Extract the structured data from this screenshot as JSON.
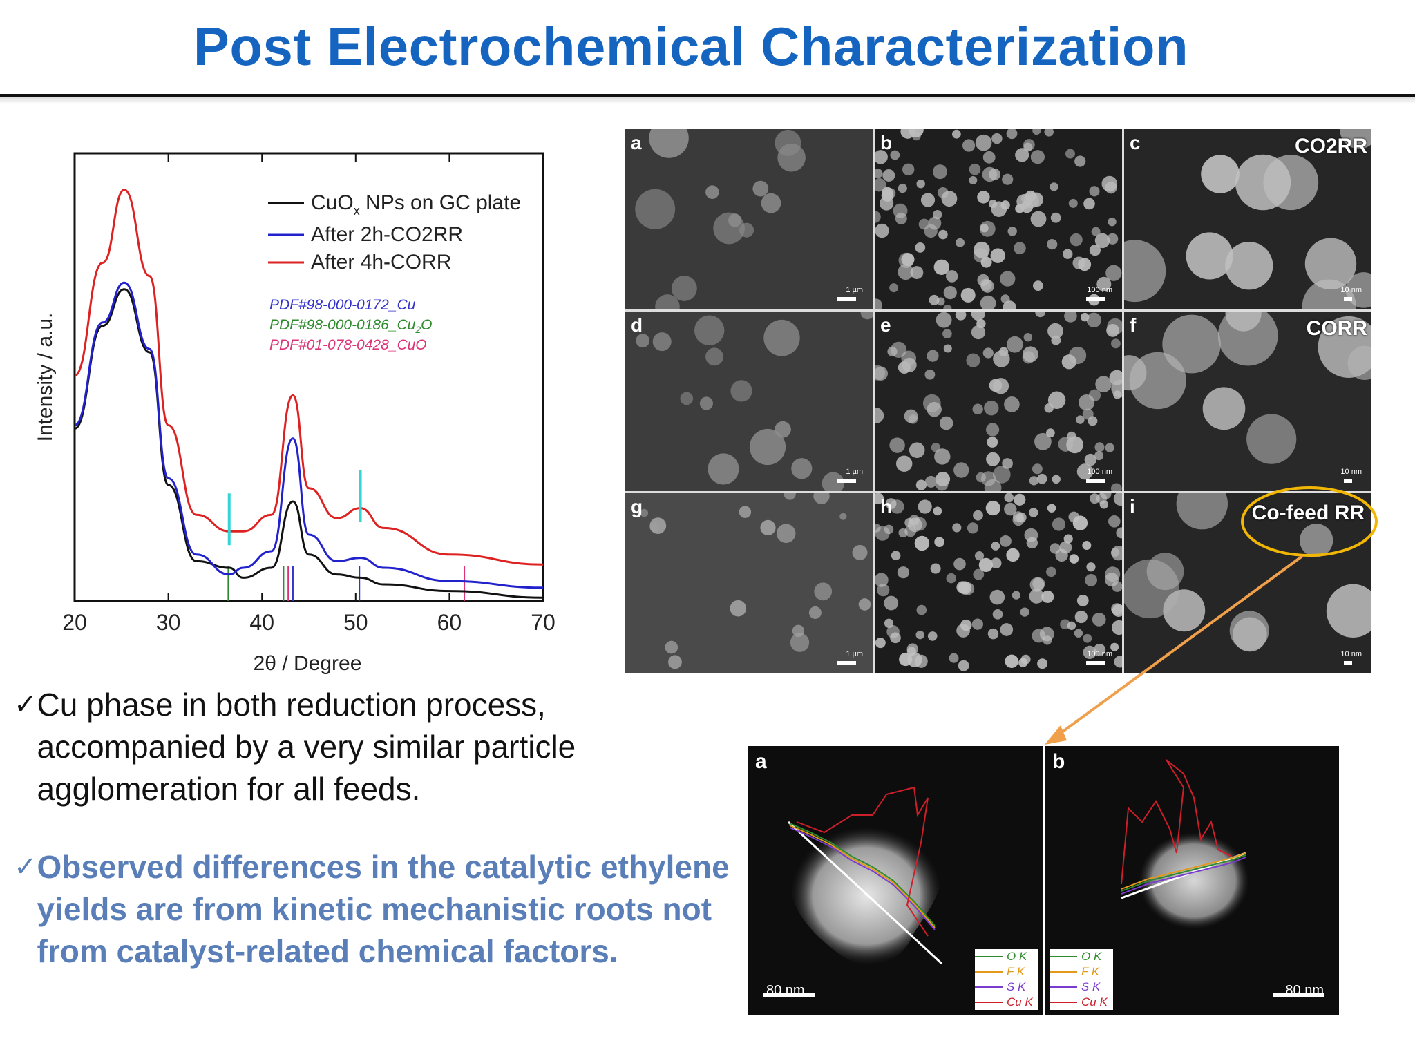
{
  "title": "Post Electrochemical Characterization",
  "xrd": {
    "legend": [
      "CuOx NPs on GC plate",
      "After 2h-CO2RR",
      "After 4h-CORR"
    ],
    "pdf_refs": [
      "PDF#98-000-0172_Cu",
      "PDF#98-000-0186_Cu2O",
      "PDF#01-078-0428_CuO"
    ],
    "xlabel": "2θ / Degree",
    "ylabel": "Intensity / a.u.",
    "xticks": [
      "20",
      "30",
      "40",
      "50",
      "60",
      "70"
    ]
  },
  "sem": {
    "letters": [
      "a",
      "b",
      "c",
      "d",
      "e",
      "f",
      "g",
      "h",
      "i"
    ],
    "tags": {
      "c": "CO2RR",
      "f": "CORR",
      "i": "Co-feed RR"
    },
    "scale_labels": [
      "1 µm",
      "100 nm",
      "10 nm",
      "1 µm",
      "100 nm",
      "10 nm",
      "1 µm",
      "100 nm",
      "10 nm"
    ]
  },
  "bullets": [
    "Cu phase in both reduction process, accompanied by a very similar particle agglomeration for all feeds.",
    "Observed differences in the catalytic ethylene yields are from kinetic mechanistic roots not from catalyst-related chemical factors."
  ],
  "check_mark": "✓",
  "tem": {
    "letters": [
      "a",
      "b"
    ],
    "scale_text": "80 nm",
    "legend": [
      "O K",
      "F K",
      "S K",
      "Cu K"
    ]
  },
  "colors": {
    "title": "#1565c0",
    "black_curve": "#111111",
    "blue_curve": "#2222cc",
    "red_curve": "#dd2222",
    "highlight_circle": "#f2b705",
    "arrow": "#f0a04b",
    "bullet2": "#5a7fb8"
  },
  "chart_data": {
    "type": "line",
    "title": "",
    "xlabel": "2θ / Degree",
    "ylabel": "Intensity / a.u.",
    "xlim": [
      20,
      70
    ],
    "series": [
      {
        "name": "CuOx NPs on GC plate",
        "x": [
          20,
          23,
          25.3,
          28,
          30,
          33,
          36.5,
          38,
          41,
          43.3,
          45,
          48,
          50.5,
          53,
          60,
          70
        ],
        "y": [
          0.52,
          0.83,
          0.94,
          0.75,
          0.35,
          0.12,
          0.1,
          0.07,
          0.1,
          0.3,
          0.14,
          0.08,
          0.07,
          0.05,
          0.03,
          0.01
        ]
      },
      {
        "name": "After 2h-CO2RR",
        "x": [
          20,
          23,
          25.3,
          28,
          30,
          33,
          36.5,
          38,
          41,
          43.3,
          45,
          48,
          50.5,
          53,
          60,
          70
        ],
        "y": [
          0.53,
          0.84,
          0.96,
          0.76,
          0.37,
          0.14,
          0.08,
          0.1,
          0.15,
          0.49,
          0.2,
          0.12,
          0.13,
          0.1,
          0.06,
          0.04
        ]
      },
      {
        "name": "After 4h-CORR",
        "x": [
          20,
          23,
          25.3,
          28,
          30,
          33,
          36.5,
          38,
          41,
          43.3,
          45,
          48,
          50.5,
          53,
          60,
          70
        ],
        "y": [
          0.68,
          1.02,
          1.24,
          0.98,
          0.53,
          0.26,
          0.21,
          0.21,
          0.26,
          0.62,
          0.34,
          0.25,
          0.28,
          0.22,
          0.14,
          0.11
        ]
      }
    ],
    "reference_lines": [
      {
        "name": "PDF#98-000-0172_Cu",
        "color": "#3333cc",
        "x": [
          43.3,
          50.4
        ]
      },
      {
        "name": "PDF#98-000-0186_Cu2O",
        "color": "#2e8b2e",
        "x": [
          36.4,
          42.3
        ]
      },
      {
        "name": "PDF#01-078-0428_CuO",
        "color": "#dd3377",
        "x": [
          42.8,
          61.6
        ]
      }
    ],
    "markers": [
      36.5,
      50.5
    ],
    "legend_position": "top-right",
    "grid": false
  }
}
